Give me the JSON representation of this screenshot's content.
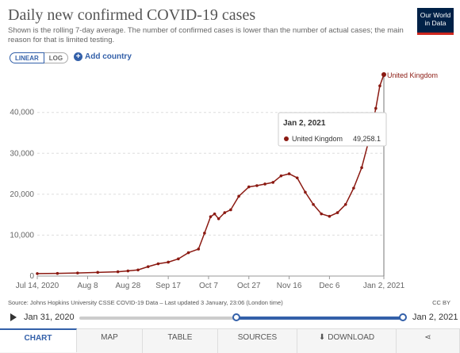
{
  "header": {
    "title": "Daily new confirmed COVID-19 cases",
    "subtitle": "Shown is the rolling 7-day average. The number of confirmed cases is lower than the number of actual cases; the main reason for that is limited testing.",
    "logo_line1": "Our World",
    "logo_line2": "in Data"
  },
  "controls": {
    "linear_label": "LINEAR",
    "log_label": "LOG",
    "add_country_label": "Add country"
  },
  "tooltip": {
    "date": "Jan 2, 2021",
    "country": "United Kingdom",
    "value": "49,258.1"
  },
  "footer": {
    "source": "Source: Johns Hopkins University CSSE COVID-19 Data – Last updated 3 January, 23:06 (London time)",
    "license": "CC BY"
  },
  "timeline": {
    "start_label": "Jan 31, 2020",
    "end_label": "Jan 2, 2021"
  },
  "tabs": [
    {
      "label": "CHART",
      "active": true
    },
    {
      "label": "MAP"
    },
    {
      "label": "TABLE"
    },
    {
      "label": "SOURCES"
    },
    {
      "label": "DOWNLOAD"
    }
  ],
  "colors": {
    "series": "#8b1a12",
    "accent": "#3360a9"
  },
  "chart_data": {
    "type": "line",
    "title": "Daily new confirmed COVID-19 cases",
    "xlabel": "",
    "ylabel": "",
    "ylim": [
      0,
      49258.1
    ],
    "xlim": [
      "2020-07-14",
      "2021-01-02"
    ],
    "grid": "horizontal dashed",
    "x_ticks": [
      "Jul 14, 2020",
      "Aug 8",
      "Aug 28",
      "Sep 17",
      "Oct 7",
      "Oct 27",
      "Nov 16",
      "Dec 6",
      "Jan 2, 2021"
    ],
    "y_ticks": [
      "0",
      "10,000",
      "20,000",
      "30,000",
      "40,000"
    ],
    "y_tick_values": [
      0,
      10000,
      20000,
      30000,
      40000
    ],
    "series": [
      {
        "name": "United Kingdom",
        "color": "#8b1a12",
        "points": [
          [
            "2020-07-14",
            600
          ],
          [
            "2020-07-24",
            650
          ],
          [
            "2020-08-03",
            750
          ],
          [
            "2020-08-13",
            900
          ],
          [
            "2020-08-23",
            1050
          ],
          [
            "2020-08-28",
            1250
          ],
          [
            "2020-09-02",
            1500
          ],
          [
            "2020-09-07",
            2300
          ],
          [
            "2020-09-12",
            3000
          ],
          [
            "2020-09-17",
            3400
          ],
          [
            "2020-09-22",
            4200
          ],
          [
            "2020-09-27",
            5700
          ],
          [
            "2020-10-02",
            6600
          ],
          [
            "2020-10-05",
            10500
          ],
          [
            "2020-10-08",
            14500
          ],
          [
            "2020-10-10",
            15200
          ],
          [
            "2020-10-12",
            14000
          ],
          [
            "2020-10-15",
            15500
          ],
          [
            "2020-10-18",
            16200
          ],
          [
            "2020-10-22",
            19500
          ],
          [
            "2020-10-27",
            21800
          ],
          [
            "2020-10-31",
            22100
          ],
          [
            "2020-11-04",
            22500
          ],
          [
            "2020-11-08",
            22900
          ],
          [
            "2020-11-12",
            24500
          ],
          [
            "2020-11-16",
            25000
          ],
          [
            "2020-11-20",
            24000
          ],
          [
            "2020-11-24",
            20500
          ],
          [
            "2020-11-28",
            17500
          ],
          [
            "2020-12-02",
            15200
          ],
          [
            "2020-12-06",
            14600
          ],
          [
            "2020-12-10",
            15500
          ],
          [
            "2020-12-14",
            17500
          ],
          [
            "2020-12-18",
            21500
          ],
          [
            "2020-12-22",
            26500
          ],
          [
            "2020-12-26",
            34000
          ],
          [
            "2020-12-29",
            41000
          ],
          [
            "2020-12-31",
            46500
          ],
          [
            "2021-01-02",
            49258.1
          ]
        ]
      }
    ]
  }
}
